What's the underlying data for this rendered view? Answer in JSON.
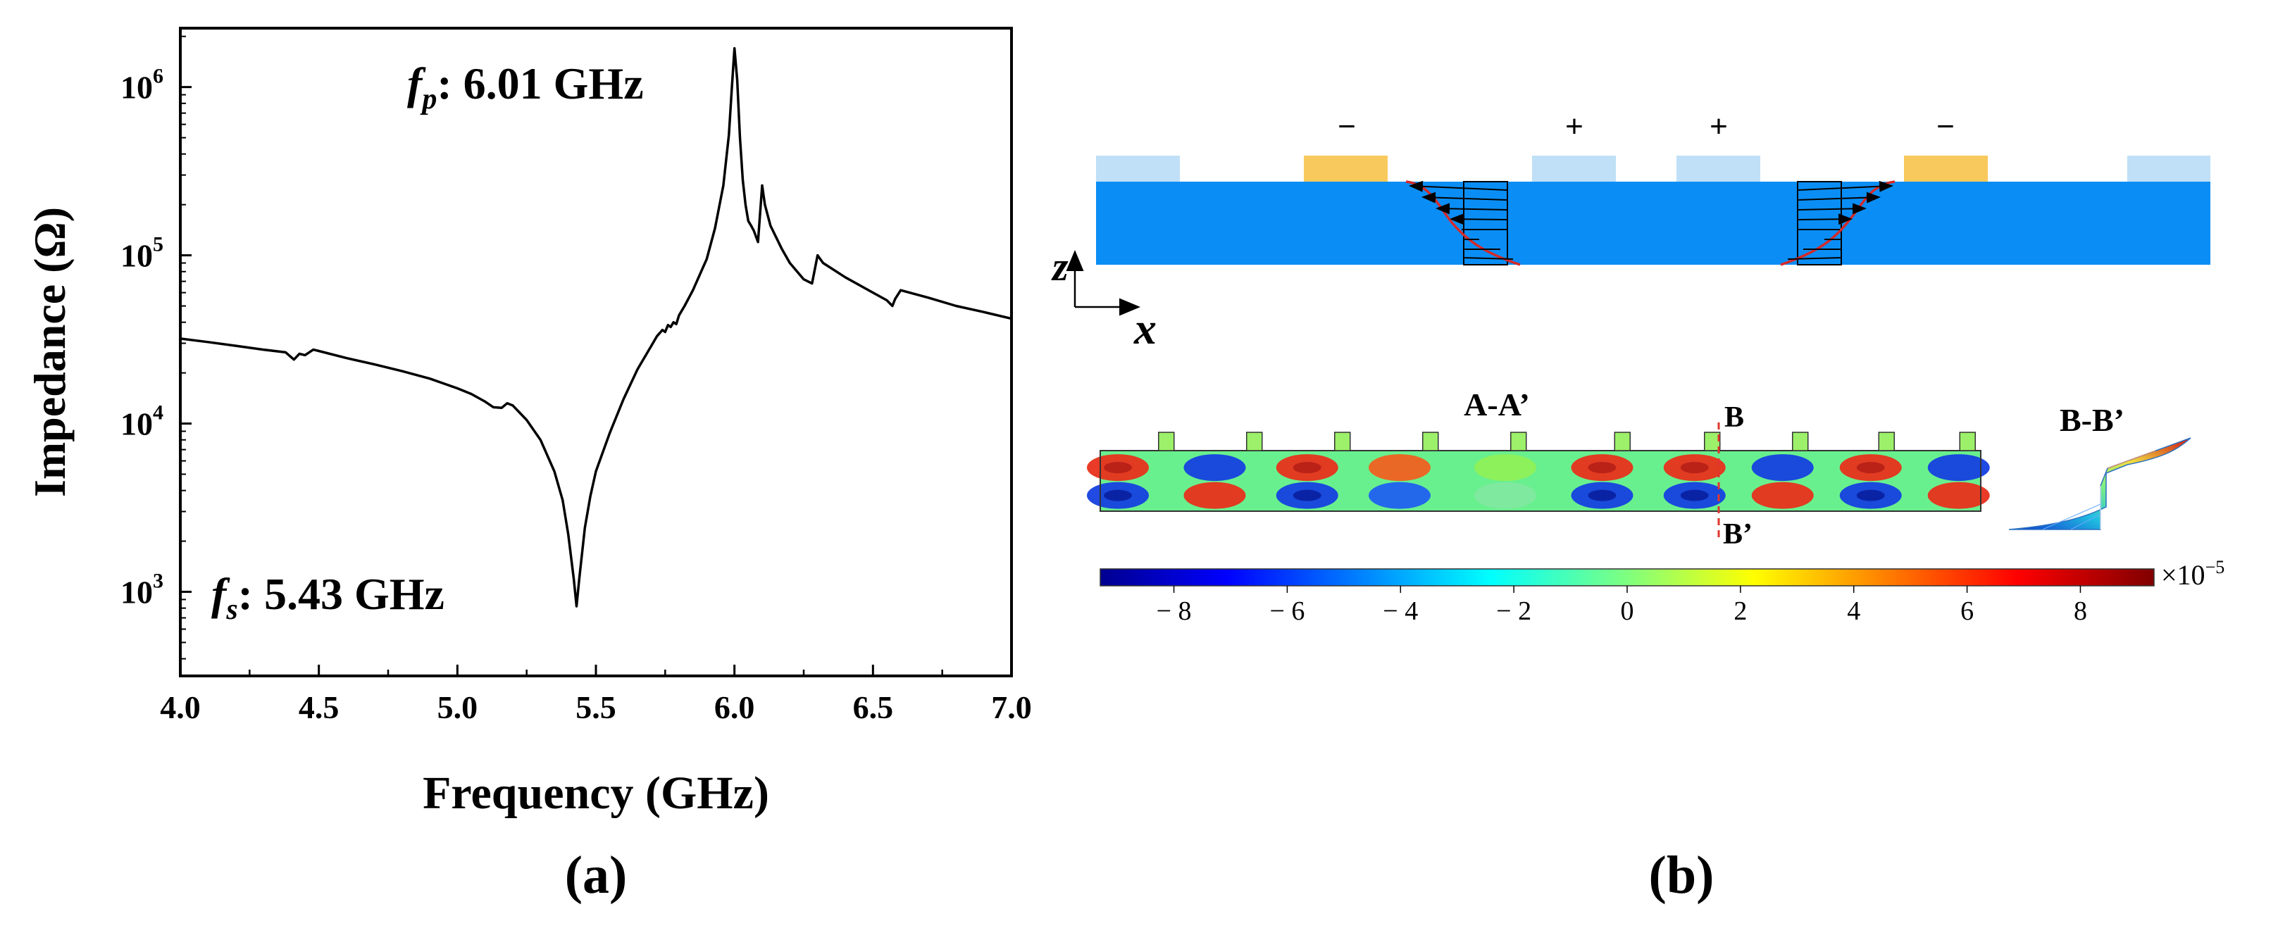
{
  "panel_labels": {
    "a": "(a)",
    "b": "(b)"
  },
  "colors": {
    "substrate": "#0a8ef5",
    "electrode_ground": "#bfe0f6",
    "electrode_signal": "#f8c95c",
    "wave_curve": "#d42a2a",
    "section_line": "#e0362e",
    "axis": "#000000",
    "trace": "#000000"
  },
  "chart_data": {
    "type": "line",
    "title": "",
    "xlabel": "Frequency (GHz)",
    "ylabel": "Impedance (Ω)",
    "xlim": [
      4.0,
      7.0
    ],
    "ylim_log10": [
      2.5,
      6.35
    ],
    "yscale": "log",
    "x_ticks": [
      "4.0",
      "4.5",
      "5.0",
      "5.5",
      "6.0",
      "6.5",
      "7.0"
    ],
    "y_ticks": [
      {
        "base": "10",
        "exp": "3",
        "log10": 3
      },
      {
        "base": "10",
        "exp": "4",
        "log10": 4
      },
      {
        "base": "10",
        "exp": "5",
        "log10": 5
      },
      {
        "base": "10",
        "exp": "6",
        "log10": 6
      }
    ],
    "annotations": {
      "fp": {
        "sym": "f",
        "sub": "p",
        "text": ": 6.01 GHz",
        "freq": 6.01
      },
      "fs": {
        "sym": "f",
        "sub": "s",
        "text": ": 5.43 GHz",
        "freq": 5.43
      }
    },
    "series": [
      {
        "name": "Impedance",
        "x": [
          4.0,
          4.1,
          4.2,
          4.3,
          4.38,
          4.41,
          4.43,
          4.45,
          4.48,
          4.5,
          4.6,
          4.7,
          4.8,
          4.9,
          5.0,
          5.05,
          5.1,
          5.13,
          5.16,
          5.18,
          5.2,
          5.25,
          5.3,
          5.35,
          5.38,
          5.4,
          5.42,
          5.43,
          5.44,
          5.46,
          5.48,
          5.5,
          5.55,
          5.6,
          5.65,
          5.7,
          5.72,
          5.74,
          5.75,
          5.76,
          5.77,
          5.78,
          5.79,
          5.8,
          5.82,
          5.85,
          5.9,
          5.93,
          5.96,
          5.98,
          5.99,
          6.0,
          6.01,
          6.02,
          6.03,
          6.04,
          6.05,
          6.06,
          6.07,
          6.085,
          6.1,
          6.11,
          6.13,
          6.17,
          6.2,
          6.25,
          6.28,
          6.3,
          6.32,
          6.4,
          6.5,
          6.55,
          6.57,
          6.58,
          6.6,
          6.7,
          6.8,
          6.9,
          7.0
        ],
        "y": [
          32000,
          30500,
          29000,
          27500,
          26500,
          24000,
          26000,
          25500,
          27500,
          27000,
          24500,
          22500,
          20500,
          18500,
          16200,
          15000,
          13500,
          12500,
          12400,
          13200,
          12800,
          10500,
          8000,
          5200,
          3500,
          2200,
          1200,
          820,
          1200,
          2400,
          3700,
          5200,
          8800,
          14000,
          21000,
          29000,
          33000,
          36000,
          35000,
          38500,
          37500,
          40000,
          39000,
          44000,
          50000,
          62000,
          95000,
          145000,
          260000,
          520000,
          950000,
          1700000,
          1100000,
          500000,
          280000,
          200000,
          160000,
          150000,
          140000,
          120000,
          260000,
          200000,
          150000,
          110000,
          90000,
          72000,
          68000,
          100000,
          90000,
          74000,
          60000,
          54000,
          50000,
          55000,
          62000,
          56000,
          50000,
          46000,
          42000
        ]
      }
    ]
  },
  "schematic": {
    "polarity_labels": [
      "−",
      "+",
      "+",
      "−"
    ],
    "axis_z": "z",
    "axis_x": "x"
  },
  "simulation": {
    "section_aa": "A-A’",
    "section_b": "B",
    "section_b_prime": "B’",
    "section_bb": "B-B’",
    "colorbar_ticks": [
      "− 8",
      "− 6",
      "− 4",
      "− 2",
      "0",
      "2",
      "4",
      "6",
      "8"
    ],
    "colorbar_values": [
      -8,
      -6,
      -4,
      -2,
      0,
      2,
      4,
      6,
      8
    ],
    "colorbar_range": [
      -9.3,
      9.3
    ],
    "colorbar_multiplier": "×10",
    "colorbar_exponent": "−5"
  }
}
